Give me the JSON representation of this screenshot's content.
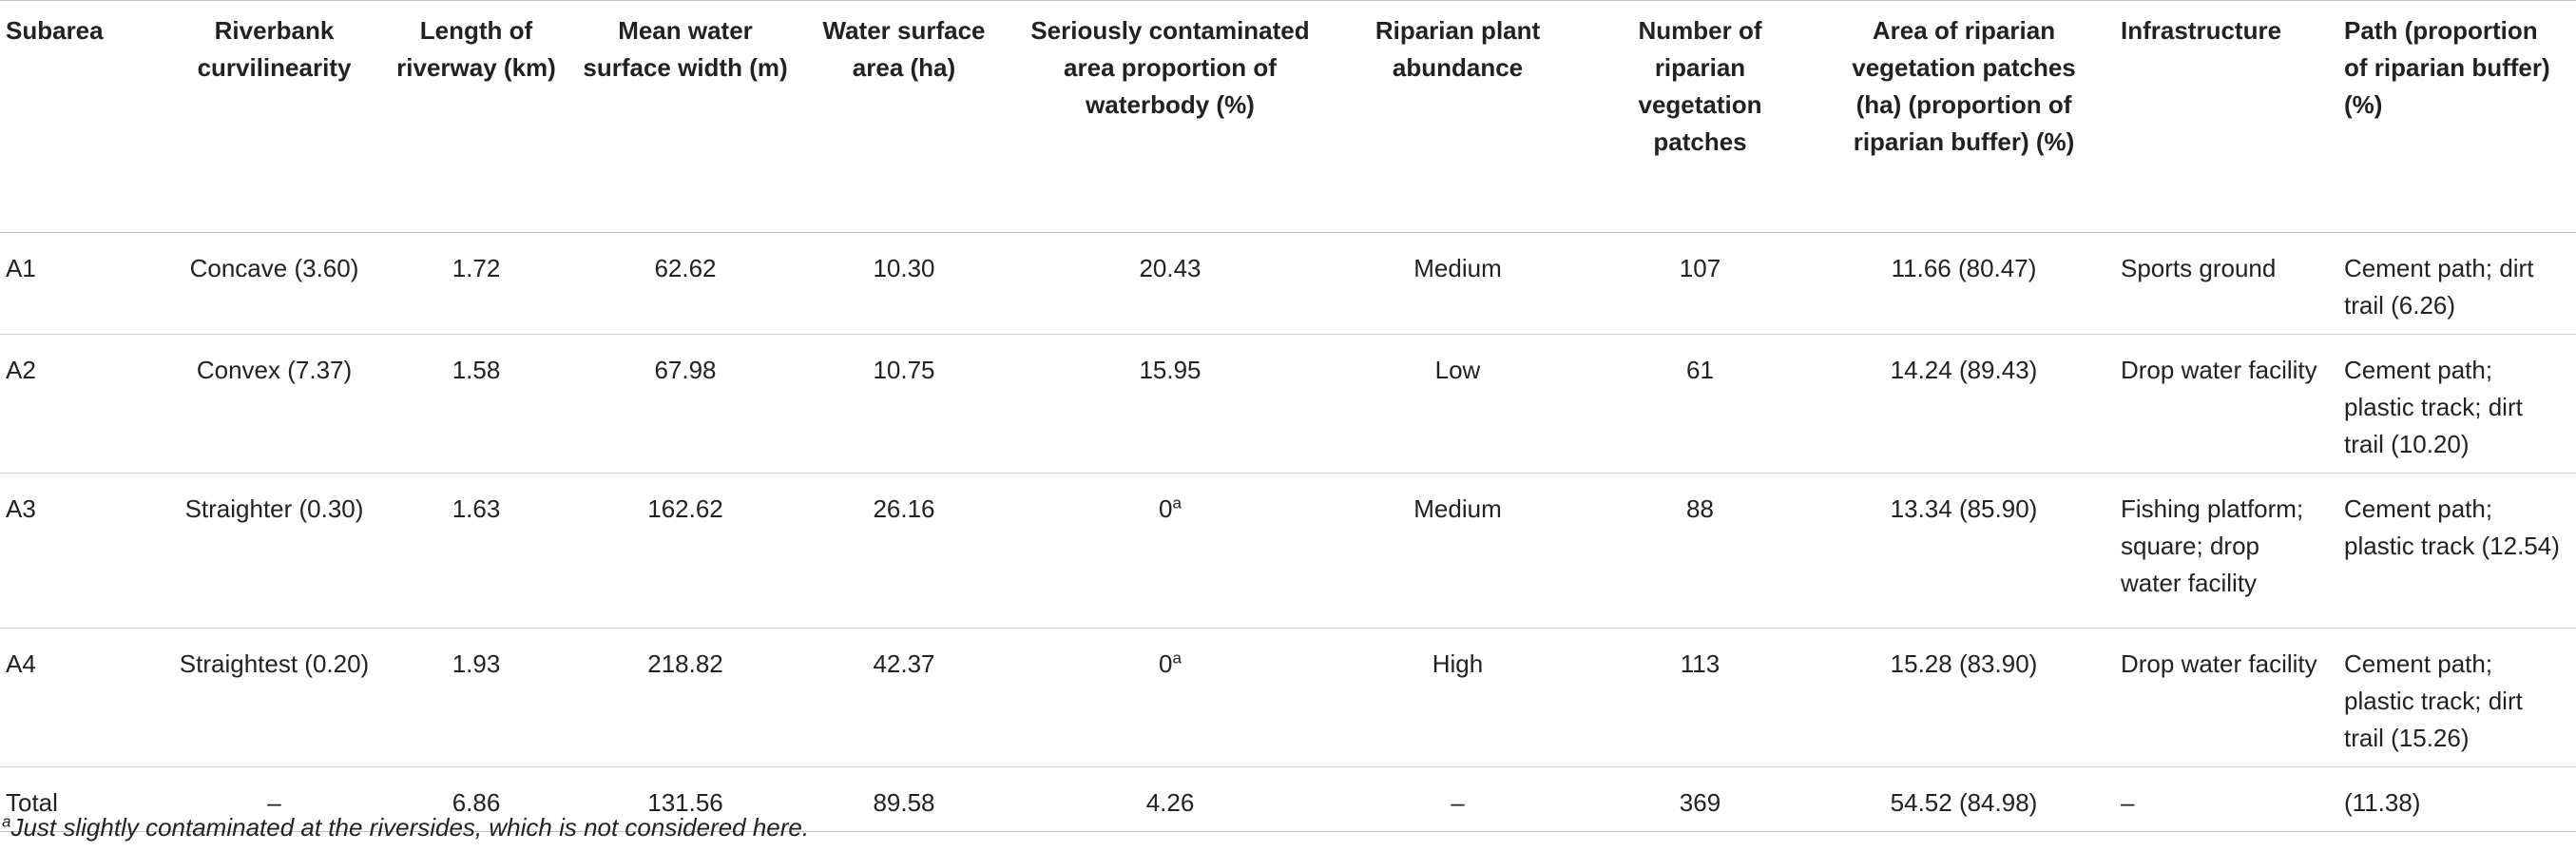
{
  "table": {
    "headers": [
      "Subarea",
      "Riverbank curvilinearity",
      "Length of riverway (km)",
      "Mean water surface width (m)",
      "Water surface area (ha)",
      "Seriously contaminated area proportion of waterbody (%)",
      "Riparian plant abundance",
      "Number of riparian vegetation patches",
      "Area of riparian vegetation patches (ha) (proportion of riparian buffer) (%)",
      "Infrastructure",
      "Path (proportion of riparian buffer) (%)"
    ],
    "rows": [
      {
        "subarea": "A1",
        "curvilinearity": "Concave (3.60)",
        "length": "1.72",
        "width": "62.62",
        "area": "10.30",
        "contaminated": "20.43",
        "contaminated_sup": "",
        "abundance": "Medium",
        "patches": "107",
        "patch_area": "11.66 (80.47)",
        "infrastructure": "Sports ground",
        "path": "Cement path; dirt trail (6.26)"
      },
      {
        "subarea": "A2",
        "curvilinearity": "Convex (7.37)",
        "length": "1.58",
        "width": "67.98",
        "area": "10.75",
        "contaminated": "15.95",
        "contaminated_sup": "",
        "abundance": "Low",
        "patches": "61",
        "patch_area": "14.24 (89.43)",
        "infrastructure": "Drop water facility",
        "path": "Cement path; plastic track; dirt trail (10.20)"
      },
      {
        "subarea": "A3",
        "curvilinearity": "Straighter (0.30)",
        "length": "1.63",
        "width": "162.62",
        "area": "26.16",
        "contaminated": "0",
        "contaminated_sup": "a",
        "abundance": "Medium",
        "patches": "88",
        "patch_area": "13.34 (85.90)",
        "infrastructure": "Fishing platform; square; drop water facility",
        "path": "Cement path; plastic track (12.54)"
      },
      {
        "subarea": "A4",
        "curvilinearity": "Straightest (0.20)",
        "length": "1.93",
        "width": "218.82",
        "area": "42.37",
        "contaminated": "0",
        "contaminated_sup": "a",
        "abundance": "High",
        "patches": "113",
        "patch_area": "15.28 (83.90)",
        "infrastructure": "Drop water facility",
        "path": "Cement path; plastic track; dirt trail (15.26)"
      },
      {
        "subarea": "Total",
        "curvilinearity": "–",
        "length": "6.86",
        "width": "131.56",
        "area": "89.58",
        "contaminated": "4.26",
        "contaminated_sup": "",
        "abundance": "–",
        "patches": "369",
        "patch_area": "54.52 (84.98)",
        "infrastructure": "–",
        "path": "(11.38)"
      }
    ]
  },
  "footnote": {
    "marker": "a",
    "text": "Just slightly contaminated at the riversides, which is not considered here."
  }
}
